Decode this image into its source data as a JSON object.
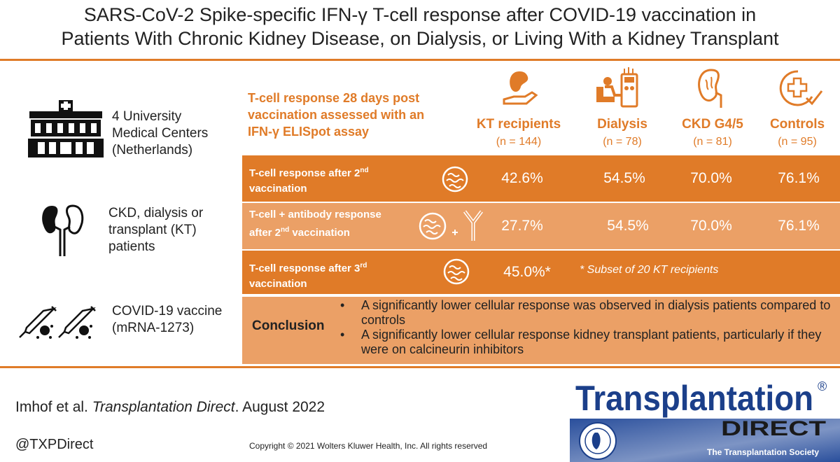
{
  "title": {
    "line1": "SARS-CoV-2 Spike-specific IFN-γ T-cell response after COVID-19 vaccination in",
    "line2": "Patients With Chronic Kidney Disease, on Dialysis, or Living With a Kidney Transplant"
  },
  "left": {
    "centers": [
      "4 University",
      "Medical Centers",
      "(Netherlands)"
    ],
    "patients": [
      "CKD, dialysis or",
      "transplant (KT)",
      "patients"
    ],
    "vaccine": [
      "COVID-19 vaccine",
      "(mRNA-1273)"
    ]
  },
  "headline": [
    "T-cell response 28 days post",
    "vaccination assessed with an",
    "IFN-γ ELISpot assay"
  ],
  "groups": [
    {
      "name": "KT recipients",
      "n": "(n = 144)",
      "icon": "kidney-hand-icon"
    },
    {
      "name": "Dialysis",
      "n": "(n = 78)",
      "icon": "dialysis-icon"
    },
    {
      "name": "CKD G4/5",
      "n": "(n = 81)",
      "icon": "kidney-icon"
    },
    {
      "name": "Controls",
      "n": "(n = 95)",
      "icon": "health-check-icon"
    }
  ],
  "rows": {
    "r1": {
      "label_a": "T-cell response  after 2",
      "sup": "nd",
      "label_b": "vaccination",
      "values": [
        "42.6%",
        "54.5%",
        "70.0%",
        "76.1%"
      ]
    },
    "r2": {
      "label_a": "T-cell + antibody response",
      "label_b": "after 2",
      "sup": "nd",
      "label_c": " vaccination",
      "values": [
        "27.7%",
        "54.5%",
        "70.0%",
        "76.1%"
      ]
    },
    "r3": {
      "label_a": "T-cell response after 3",
      "sup": "rd",
      "label_b": "vaccination",
      "value": "45.0%*",
      "note": "* Subset of 20 KT recipients"
    }
  },
  "conclusion": {
    "label": "Conclusion",
    "bullets": [
      "A significantly lower cellular response was observed in dialysis patients compared to controls",
      "A significantly lower cellular response kidney transplant patients, particularly if they were on calcineurin inhibitors"
    ]
  },
  "footer": {
    "citation_a": "Imhof et al. ",
    "citation_journal": "Transplantation Direct",
    "citation_b": ". August 2022",
    "handle": "@TXPDirect",
    "copyright": "Copyright © 2021  Wolters Kluwer Health, Inc. All rights reserved"
  },
  "logo": {
    "word": "Transplantation",
    "registered": "®",
    "sub": "DIRECT",
    "society": "The Transplantation Society"
  },
  "colors": {
    "accent": "#e07b28",
    "accent_light": "#eba066",
    "navy": "#1b3f8a"
  }
}
